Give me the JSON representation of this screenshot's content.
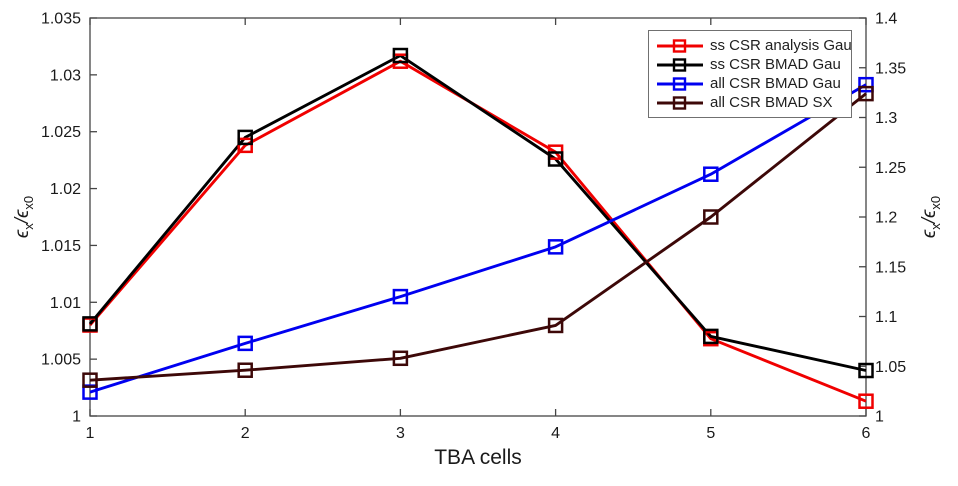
{
  "figure": {
    "background": "#ffffff",
    "axis_color": "#454545",
    "text_color": "#1a1a1a"
  },
  "chart_data": {
    "type": "line",
    "title": "",
    "xlabel": "TBA cells",
    "ylabel_left": "eps_x/eps_x0",
    "ylabel_right": "eps_x/eps_x0",
    "ylabel_parts": {
      "e1": "ϵ",
      "s1": "x",
      "e2": "/ϵ",
      "s2": "x0"
    },
    "grid": false,
    "legend_position": "top-right",
    "xlim": [
      1,
      6
    ],
    "ylim_left": [
      1.0,
      1.035
    ],
    "ylim_right": [
      1.0,
      1.4
    ],
    "xticks": {
      "values": [
        1,
        2,
        3,
        4,
        5,
        6
      ],
      "labels": [
        "1",
        "2",
        "3",
        "4",
        "5",
        "6"
      ]
    },
    "yticks_left": {
      "values": [
        1.0,
        1.005,
        1.01,
        1.015,
        1.02,
        1.025,
        1.03,
        1.035
      ],
      "labels": [
        "1",
        "1.005",
        "1.01",
        "1.015",
        "1.02",
        "1.025",
        "1.03",
        "1.035"
      ]
    },
    "yticks_right": {
      "values": [
        1.0,
        1.05,
        1.1,
        1.15,
        1.2,
        1.25,
        1.3,
        1.35,
        1.4
      ],
      "labels": [
        "1",
        "1.05",
        "1.1",
        "1.15",
        "1.2",
        "1.25",
        "1.3",
        "1.35",
        "1.4"
      ]
    },
    "x": [
      1,
      2,
      3,
      4,
      5,
      6
    ],
    "series": [
      {
        "name": "ss CSR analysis Gau",
        "color": "#f00000",
        "axis": "left",
        "marker": "square",
        "values": [
          1.008,
          1.0238,
          1.0312,
          1.0232,
          1.0068,
          1.0013
        ]
      },
      {
        "name": "ss CSR BMAD Gau",
        "color": "#000000",
        "axis": "left",
        "marker": "square",
        "values": [
          1.0081,
          1.0245,
          1.0317,
          1.0226,
          1.007,
          1.004
        ]
      },
      {
        "name": "all CSR BMAD Gau",
        "color": "#0000f0",
        "axis": "right",
        "marker": "square",
        "values": [
          1.024,
          1.073,
          1.12,
          1.17,
          1.243,
          1.333
        ]
      },
      {
        "name": "all CSR BMAD SX",
        "color": "#3d0808",
        "axis": "right",
        "marker": "square",
        "values": [
          1.036,
          1.046,
          1.058,
          1.091,
          1.2,
          1.324
        ]
      }
    ]
  }
}
